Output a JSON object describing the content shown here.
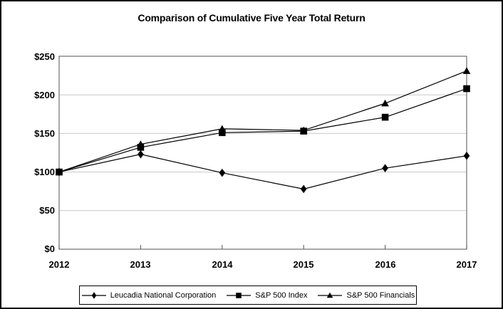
{
  "chart_data": {
    "type": "line",
    "title": "Comparison of Cumulative Five Year Total Return",
    "x": [
      "2012",
      "2013",
      "2014",
      "2015",
      "2016",
      "2017"
    ],
    "xlabel": "",
    "ylabel": "",
    "ylim": [
      0,
      250
    ],
    "y_tick_values": [
      0,
      50,
      100,
      150,
      200,
      250
    ],
    "y_tick_labels": [
      "$0",
      "$50",
      "$100",
      "$150",
      "$200",
      "$250"
    ],
    "grid": "horizontal",
    "legend_position": "bottom",
    "draw_order": [
      0,
      2,
      1
    ],
    "series": [
      {
        "name": "Leucadia National Corporation",
        "marker": "diamond",
        "color": "#000000",
        "values": [
          100,
          123,
          99,
          78,
          105,
          121
        ]
      },
      {
        "name": "S&P 500 Index",
        "marker": "square",
        "color": "#000000",
        "values": [
          100,
          132,
          151,
          153,
          171,
          208
        ]
      },
      {
        "name": "S&P 500 Financials",
        "marker": "triangle",
        "color": "#000000",
        "values": [
          100,
          136,
          156,
          154,
          189,
          231
        ]
      }
    ],
    "colors": {
      "gridline": "#c9c9c9",
      "axis_frame": "#6e6e6e",
      "text": "#000000",
      "background": "#ffffff"
    }
  }
}
